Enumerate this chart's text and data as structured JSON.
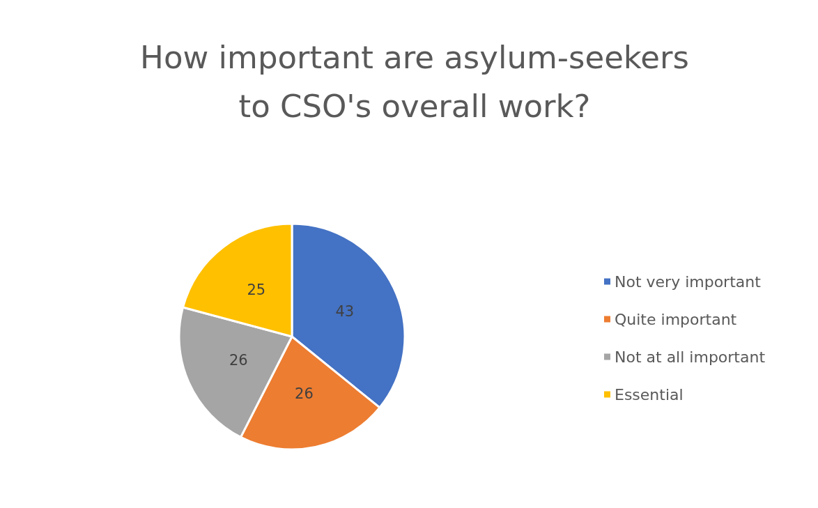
{
  "chart_data": {
    "type": "pie",
    "title": "How important are asylum-seekers\nto CSO's overall work?",
    "categories": [
      "Not very important",
      "Quite important",
      "Not at all important",
      "Essential"
    ],
    "values": [
      43,
      26,
      26,
      25
    ],
    "colors": [
      "#4472c4",
      "#ed7d31",
      "#a5a5a5",
      "#ffc000"
    ],
    "data_labels": true,
    "legend": "right"
  }
}
